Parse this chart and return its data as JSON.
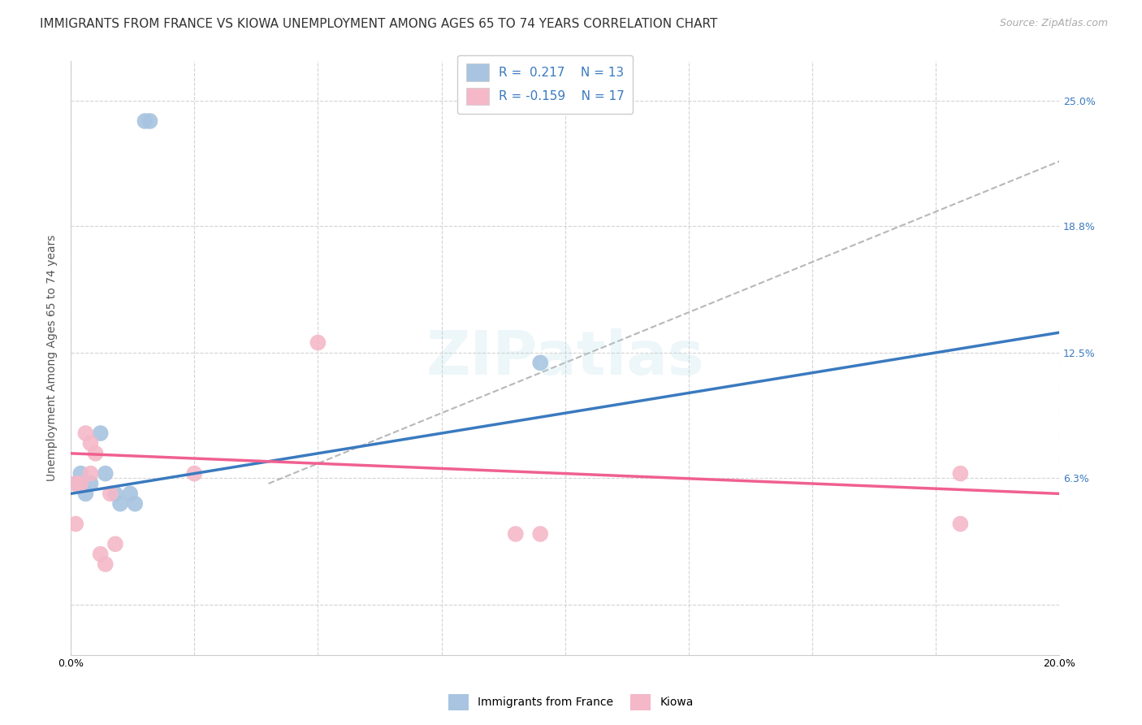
{
  "title": "IMMIGRANTS FROM FRANCE VS KIOWA UNEMPLOYMENT AMONG AGES 65 TO 74 YEARS CORRELATION CHART",
  "source": "Source: ZipAtlas.com",
  "ylabel": "Unemployment Among Ages 65 to 74 years",
  "xlim": [
    0.0,
    0.2
  ],
  "ylim": [
    -0.025,
    0.27
  ],
  "yticks": [
    0.0,
    0.063,
    0.125,
    0.188,
    0.25
  ],
  "ytick_labels": [
    "",
    "6.3%",
    "12.5%",
    "18.8%",
    "25.0%"
  ],
  "xticks": [
    0.0,
    0.025,
    0.05,
    0.075,
    0.1,
    0.125,
    0.15,
    0.175,
    0.2
  ],
  "france_color": "#a8c4e0",
  "kiowa_color": "#f4b8c8",
  "france_line_color": "#3a7abf",
  "kiowa_line_color": "#f06090",
  "trend_dash_color": "#b8b8b8",
  "france_scatter_x": [
    0.001,
    0.002,
    0.003,
    0.004,
    0.006,
    0.007,
    0.009,
    0.01,
    0.012,
    0.013,
    0.015,
    0.016,
    0.095
  ],
  "france_scatter_y": [
    0.06,
    0.065,
    0.055,
    0.06,
    0.085,
    0.065,
    0.055,
    0.05,
    0.055,
    0.05,
    0.24,
    0.24,
    0.12
  ],
  "kiowa_scatter_x": [
    0.001,
    0.001,
    0.002,
    0.003,
    0.004,
    0.004,
    0.005,
    0.006,
    0.007,
    0.008,
    0.009,
    0.025,
    0.05,
    0.09,
    0.095,
    0.18,
    0.18
  ],
  "kiowa_scatter_y": [
    0.06,
    0.04,
    0.06,
    0.085,
    0.08,
    0.065,
    0.075,
    0.025,
    0.02,
    0.055,
    0.03,
    0.065,
    0.13,
    0.035,
    0.035,
    0.065,
    0.04
  ],
  "france_dot_size": 200,
  "kiowa_dot_size": 200,
  "france_line_x0": 0.0,
  "france_line_y0": 0.055,
  "france_line_x1": 0.2,
  "france_line_y1": 0.135,
  "kiowa_line_x0": 0.0,
  "kiowa_line_y0": 0.075,
  "kiowa_line_x1": 0.2,
  "kiowa_line_y1": 0.055,
  "dash_line_x0": 0.04,
  "dash_line_y0": 0.06,
  "dash_line_x1": 0.2,
  "dash_line_y1": 0.22,
  "background_color": "#ffffff",
  "grid_color": "#d3d3d3",
  "title_fontsize": 11,
  "axis_label_fontsize": 10,
  "tick_fontsize": 9,
  "source_fontsize": 9,
  "watermark_text": "ZIPatlas",
  "watermark_fontsize": 54
}
